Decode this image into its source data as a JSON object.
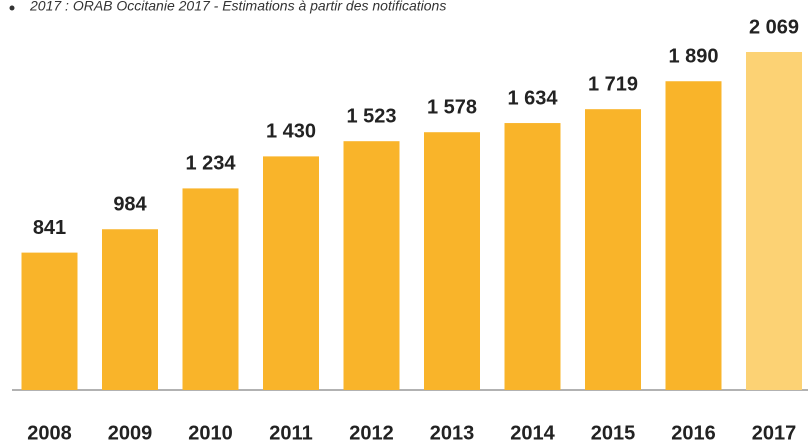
{
  "chart_data": {
    "type": "bar",
    "note": "2017 : ORAB Occitanie  2017 - Estimations à partir des notifications",
    "categories": [
      "2008",
      "2009",
      "2010",
      "2011",
      "2012",
      "2013",
      "2014",
      "2015",
      "2016",
      "2017"
    ],
    "values": [
      841,
      984,
      1234,
      1430,
      1523,
      1578,
      1634,
      1719,
      1890,
      2069
    ],
    "value_labels": [
      "841",
      "984",
      "1 234",
      "1 430",
      "1 523",
      "1 578",
      "1 634",
      "1 719",
      "1 890",
      "2 069"
    ],
    "colors": [
      "#f9b42a",
      "#f9b42a",
      "#f9b42a",
      "#f9b42a",
      "#f9b42a",
      "#f9b42a",
      "#f9b42a",
      "#f9b42a",
      "#f9b42a",
      "#fcd274"
    ]
  }
}
